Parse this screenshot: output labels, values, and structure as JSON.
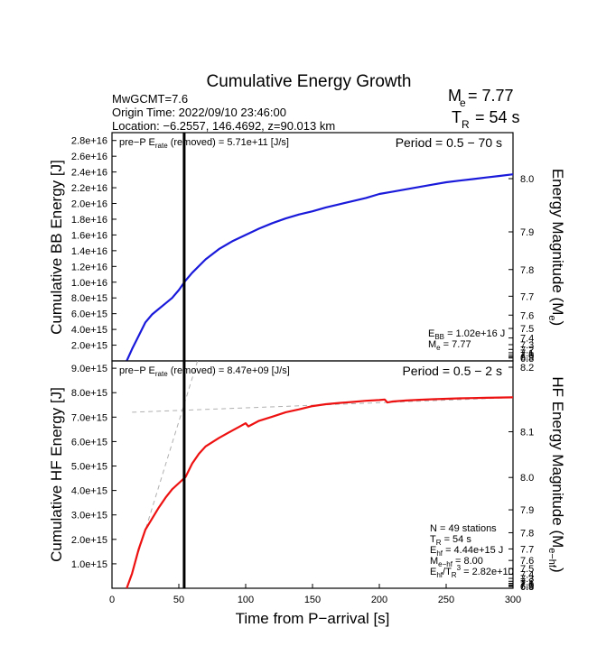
{
  "header": {
    "title": "Cumulative Energy Growth",
    "info_line1": "MwGCMT=7.6",
    "info_line2": "Origin Time: 2022/09/10 23:46:00",
    "info_line3": "Location: −6.2557, 146.4692, z=90.013 km",
    "me_label": "M",
    "me_sub": "e",
    "me_value": "= 7.77",
    "tr_label": "T",
    "tr_sub": "R",
    "tr_value": "= 54 s"
  },
  "colors": {
    "bb_curve": "#1a1adb",
    "hf_curve": "#ee1111",
    "fit_lines": "#b0b0b0",
    "marker": "#000000"
  },
  "chart_data": [
    {
      "type": "line",
      "panel": "broadband",
      "ylabel": "Cumulative BB Energy [J]",
      "y2label": "Energy Magnitude (M",
      "y2label_sub": "e",
      "y2label_end": ")",
      "xlim": [
        0,
        300
      ],
      "ylim": [
        0,
        2.9e+16
      ],
      "yticks": [
        2000000000000000.0,
        4000000000000000.0,
        6000000000000000.0,
        8000000000000000.0,
        1e+16,
        1.2e+16,
        1.4e+16,
        1.6e+16,
        1.8e+16,
        2e+16,
        2.2e+16,
        2.4e+16,
        2.6e+16,
        2.8e+16
      ],
      "ytick_labels": [
        "2.0e+15",
        "4.0e+15",
        "6.0e+15",
        "8.0e+15",
        "1.0e+16",
        "1.2e+16",
        "1.4e+16",
        "1.6e+16",
        "1.8e+16",
        "2.0e+16",
        "2.2e+16",
        "2.4e+16",
        "2.6e+16",
        "2.8e+16"
      ],
      "y2ticks": [
        {
          "v": 8.0,
          "label": "8.0"
        },
        {
          "v": 7.9,
          "label": "7.9"
        },
        {
          "v": 7.8,
          "label": "7.8"
        },
        {
          "v": 7.7,
          "label": "7.7"
        },
        {
          "v": 7.6,
          "label": "7.6"
        },
        {
          "v": 7.5,
          "label": "7.5"
        },
        {
          "v": 7.4,
          "label": "7.4"
        },
        {
          "v": 7.3,
          "label": "7.3"
        },
        {
          "v": 7.2,
          "label": "7.2"
        },
        {
          "v": 7.1,
          "label": "7.1"
        },
        {
          "v": 7.0,
          "label": "7.0"
        },
        {
          "v": 6.9,
          "label": "6.9"
        },
        {
          "v": 6.8,
          "label": "6.8"
        }
      ],
      "annotation_left": "pre−P E",
      "annotation_left_sub": "rate",
      "annotation_left_end": " (removed) = 5.71e+11 [J/s]",
      "period": "Period = 0.5 − 70 s",
      "summary": [
        {
          "pre": "E",
          "sub": "BB",
          "post": " = 1.02e+16 J"
        },
        {
          "pre": "M",
          "sub": "e",
          "post": " = 7.77"
        }
      ],
      "series": [
        {
          "x": [
            11,
            15,
            20,
            25,
            30,
            35,
            40,
            45,
            50,
            55,
            60,
            70,
            80,
            90,
            100,
            110,
            120,
            130,
            140,
            150,
            160,
            170,
            180,
            190,
            200,
            210,
            220,
            230,
            240,
            250,
            260,
            270,
            280,
            290,
            300
          ],
          "y": [
            0,
            1500000000000000.0,
            3200000000000000.0,
            4900000000000000.0,
            5900000000000000.0,
            6600000000000000.0,
            7300000000000000.0,
            8000000000000000.0,
            9000000000000000.0,
            1.02e+16,
            1.12e+16,
            1.29e+16,
            1.42e+16,
            1.52e+16,
            1.6e+16,
            1.68e+16,
            1.75e+16,
            1.81e+16,
            1.86e+16,
            1.9e+16,
            1.95e+16,
            1.99e+16,
            2.03e+16,
            2.07e+16,
            2.12e+16,
            2.15e+16,
            2.18e+16,
            2.21e+16,
            2.24e+16,
            2.27e+16,
            2.29e+16,
            2.31e+16,
            2.33e+16,
            2.35e+16,
            2.37e+16
          ]
        }
      ],
      "marker_x": 54
    },
    {
      "type": "line",
      "panel": "high-frequency",
      "xlabel": "Time from P−arrival [s]",
      "ylabel": "Cumulative HF Energy [J]",
      "y2label": "HF Energy Magnitude (M",
      "y2label_sub": "e−hf",
      "y2label_end": ")",
      "xlim": [
        0,
        300
      ],
      "ylim": [
        0,
        9300000000000000.0
      ],
      "xticks": [
        0,
        50,
        100,
        150,
        200,
        250,
        300
      ],
      "xtick_labels": [
        "0",
        "50",
        "100",
        "150",
        "200",
        "250",
        "300"
      ],
      "yticks": [
        1000000000000000.0,
        2000000000000000.0,
        3000000000000000.0,
        4000000000000000.0,
        5000000000000000.0,
        6000000000000000.0,
        7000000000000000.0,
        8000000000000000.0,
        9000000000000000.0
      ],
      "ytick_labels": [
        "1.0e+15",
        "2.0e+15",
        "3.0e+15",
        "4.0e+15",
        "5.0e+15",
        "6.0e+15",
        "7.0e+15",
        "8.0e+15",
        "9.0e+15"
      ],
      "y2ticks": [
        {
          "v": 8.2,
          "label": "8.2"
        },
        {
          "v": 8.1,
          "label": "8.1"
        },
        {
          "v": 8.0,
          "label": "8.0"
        },
        {
          "v": 7.9,
          "label": "7.9"
        },
        {
          "v": 7.8,
          "label": "7.8"
        },
        {
          "v": 7.7,
          "label": "7.7"
        },
        {
          "v": 7.6,
          "label": "7.6"
        },
        {
          "v": 7.5,
          "label": "7.5"
        },
        {
          "v": 7.4,
          "label": "7.4"
        },
        {
          "v": 7.3,
          "label": "7.3"
        },
        {
          "v": 7.2,
          "label": "7.2"
        },
        {
          "v": 7.1,
          "label": "7.1"
        },
        {
          "v": 7.0,
          "label": "7.0"
        },
        {
          "v": 6.9,
          "label": "6.9"
        },
        {
          "v": 6.8,
          "label": "6.8"
        }
      ],
      "annotation_left": "pre−P E",
      "annotation_left_sub": "rate",
      "annotation_left_end": " (removed) = 8.47e+09 [J/s]",
      "period": "Period = 0.5 − 2 s",
      "summary": [
        {
          "pre": "N = 49 stations",
          "sub": "",
          "post": ""
        },
        {
          "pre": "T",
          "sub": "R",
          "post": " = 54  s"
        },
        {
          "pre": "E",
          "sub": "hf",
          "post": " = 4.44e+15 J"
        },
        {
          "pre": "M",
          "sub": "e−hf",
          "post": " = 8.00"
        },
        {
          "pre": "E",
          "sub": "hf",
          "post": "/T",
          "sub2": "R",
          "sup": "3",
          "post2": " =  2.82e+10"
        }
      ],
      "series": [
        {
          "x": [
            11,
            15,
            20,
            25,
            30,
            35,
            40,
            45,
            50,
            55,
            60,
            65,
            70,
            80,
            90,
            95,
            100,
            102,
            110,
            120,
            130,
            140,
            150,
            160,
            170,
            180,
            190,
            200,
            204,
            206,
            210,
            220,
            230,
            240,
            250,
            260,
            270,
            280,
            290,
            300
          ],
          "y": [
            0,
            600000000000000.0,
            1600000000000000.0,
            2400000000000000.0,
            2850000000000000.0,
            3300000000000000.0,
            3700000000000000.0,
            4050000000000000.0,
            4300000000000000.0,
            4550000000000000.0,
            5100000000000000.0,
            5500000000000000.0,
            5800000000000000.0,
            6150000000000000.0,
            6450000000000000.0,
            6600000000000000.0,
            6750000000000000.0,
            6620000000000000.0,
            6850000000000000.0,
            7020000000000000.0,
            7200000000000000.0,
            7320000000000000.0,
            7450000000000000.0,
            7530000000000000.0,
            7580000000000000.0,
            7620000000000000.0,
            7670000000000000.0,
            7700000000000000.0,
            7720000000000000.0,
            7600000000000000.0,
            7640000000000000.0,
            7680000000000000.0,
            7710000000000000.0,
            7730000000000000.0,
            7750000000000000.0,
            7770000000000000.0,
            7780000000000000.0,
            7790000000000000.0,
            7800000000000000.0,
            7810000000000000.0
          ]
        }
      ],
      "fit_lines": [
        {
          "x": [
            15,
            300
          ],
          "y": [
            7200000000000000.0,
            7800000000000000.0
          ]
        },
        {
          "x": [
            20,
            64
          ],
          "y": [
            1500000000000000.0,
            9300000000000000.0
          ]
        }
      ],
      "marker_x": 54
    }
  ]
}
